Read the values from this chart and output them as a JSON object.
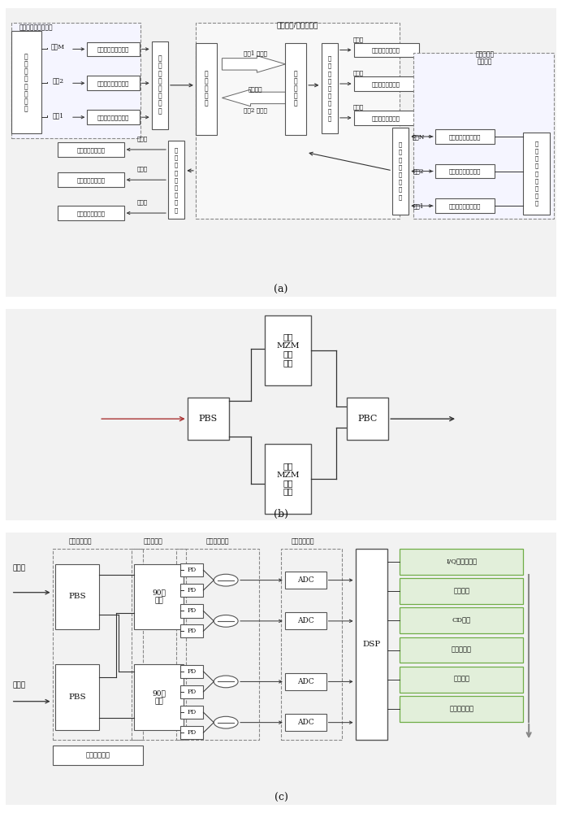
{
  "fig_bg": "#ffffff",
  "panel_bg": "#f2f2f2",
  "box_fc": "#ffffff",
  "box_ec": "#555555",
  "dash_ec": "#888888",
  "arrow_col": "#333333",
  "text_col": "#111111",
  "green_fc": "#e2efda",
  "green_ec": "#70ad47",
  "red_arrow": "#cc0000",
  "label_a": "(a)",
  "label_b": "(b)",
  "label_c": "(c)"
}
